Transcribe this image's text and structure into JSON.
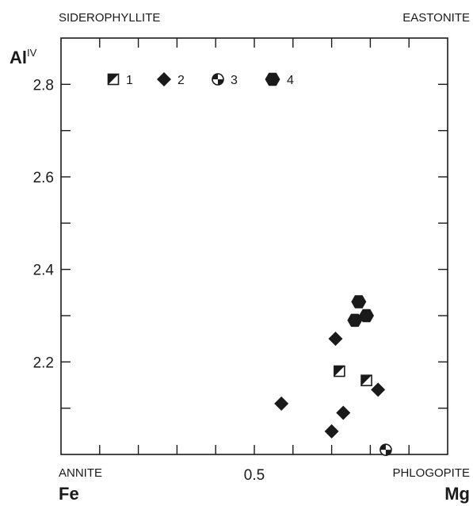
{
  "chart_data": {
    "type": "scatter",
    "y_axis_label": {
      "base": "Al",
      "sup": "IV"
    },
    "x_axis_left_label": "Fe",
    "x_axis_right_label": "Mg",
    "xlim": [
      0,
      1
    ],
    "ylim": [
      2.0,
      2.9
    ],
    "y_ticks": [
      {
        "value": 2.8,
        "label": "2.8"
      },
      {
        "value": 2.6,
        "label": "2.6"
      },
      {
        "value": 2.4,
        "label": "2.4"
      },
      {
        "value": 2.2,
        "label": "2.2"
      }
    ],
    "x_ticks": [
      {
        "value": 0.5,
        "label": "0.5"
      }
    ],
    "corner_labels": {
      "top_left": "SIDEROPHYLLITE",
      "top_right": "EASTONITE",
      "bottom_left": "ANNITE",
      "bottom_right": "PHLOGOPITE"
    },
    "grid": false,
    "legend_position": "top-left",
    "series": [
      {
        "name": "1",
        "symbol": "half-square",
        "points": [
          [
            0.72,
            2.18
          ],
          [
            0.79,
            2.16
          ]
        ]
      },
      {
        "name": "2",
        "symbol": "diamond",
        "points": [
          [
            0.57,
            2.11
          ],
          [
            0.71,
            2.25
          ],
          [
            0.73,
            2.09
          ],
          [
            0.7,
            2.05
          ],
          [
            0.82,
            2.14
          ]
        ]
      },
      {
        "name": "3",
        "symbol": "quartered-circle",
        "points": [
          [
            0.84,
            2.01
          ]
        ]
      },
      {
        "name": "4",
        "symbol": "hexagon",
        "points": [
          [
            0.77,
            2.33
          ],
          [
            0.79,
            2.3
          ],
          [
            0.76,
            2.29
          ]
        ]
      }
    ]
  }
}
